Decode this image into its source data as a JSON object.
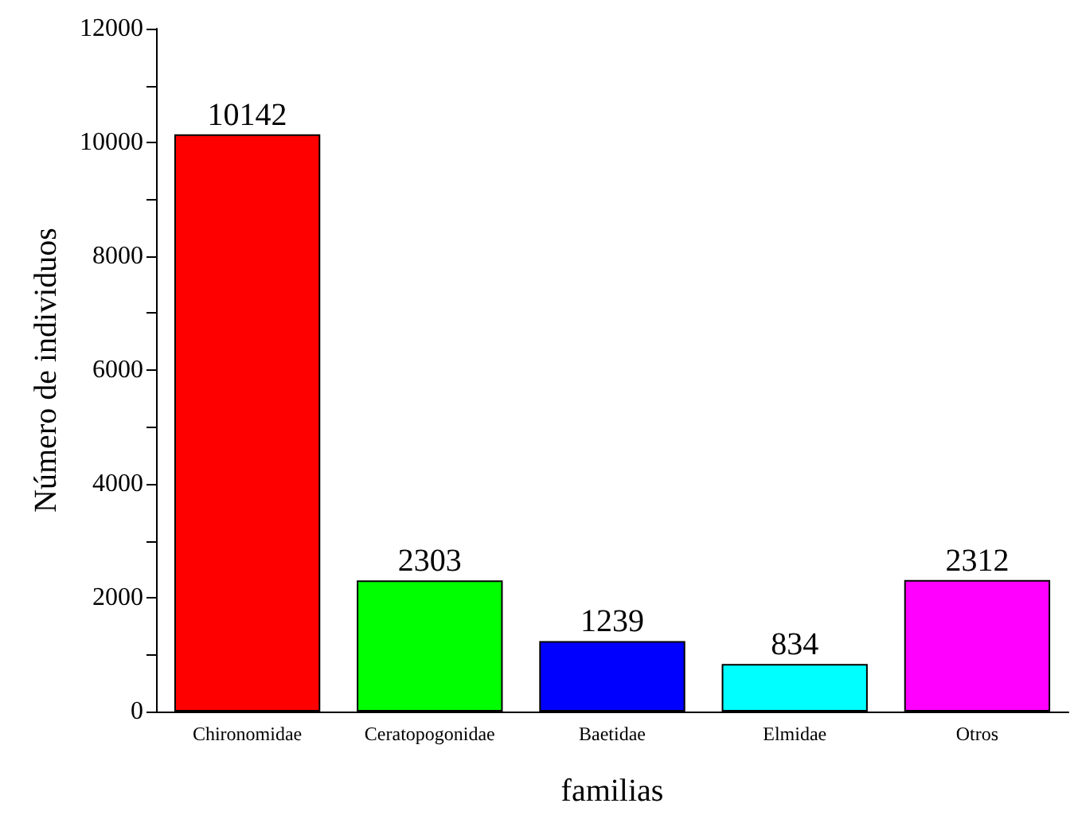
{
  "chart_data": {
    "type": "bar",
    "xlabel": "familias",
    "ylabel": "Número de individuos",
    "categories": [
      "Chironomidae",
      "Ceratopogonidae",
      "Baetidae",
      "Elmidae",
      "Otros"
    ],
    "values": [
      10142,
      2303,
      1239,
      834,
      2312
    ],
    "colors": [
      "#ff0000",
      "#00ff00",
      "#0000ff",
      "#00ffff",
      "#ff00ff"
    ],
    "ylim": [
      0,
      12000
    ],
    "yticks": [
      0,
      {
        "value": 1000,
        "label": null
      },
      2000,
      {
        "value": 3000,
        "label": null
      },
      4000,
      {
        "value": 5000,
        "label": null
      },
      6000,
      {
        "value": 7000,
        "label": null
      },
      8000,
      {
        "value": 9000,
        "label": null
      },
      10000,
      {
        "value": 11000,
        "label": null
      },
      12000
    ],
    "data_labels": true
  }
}
